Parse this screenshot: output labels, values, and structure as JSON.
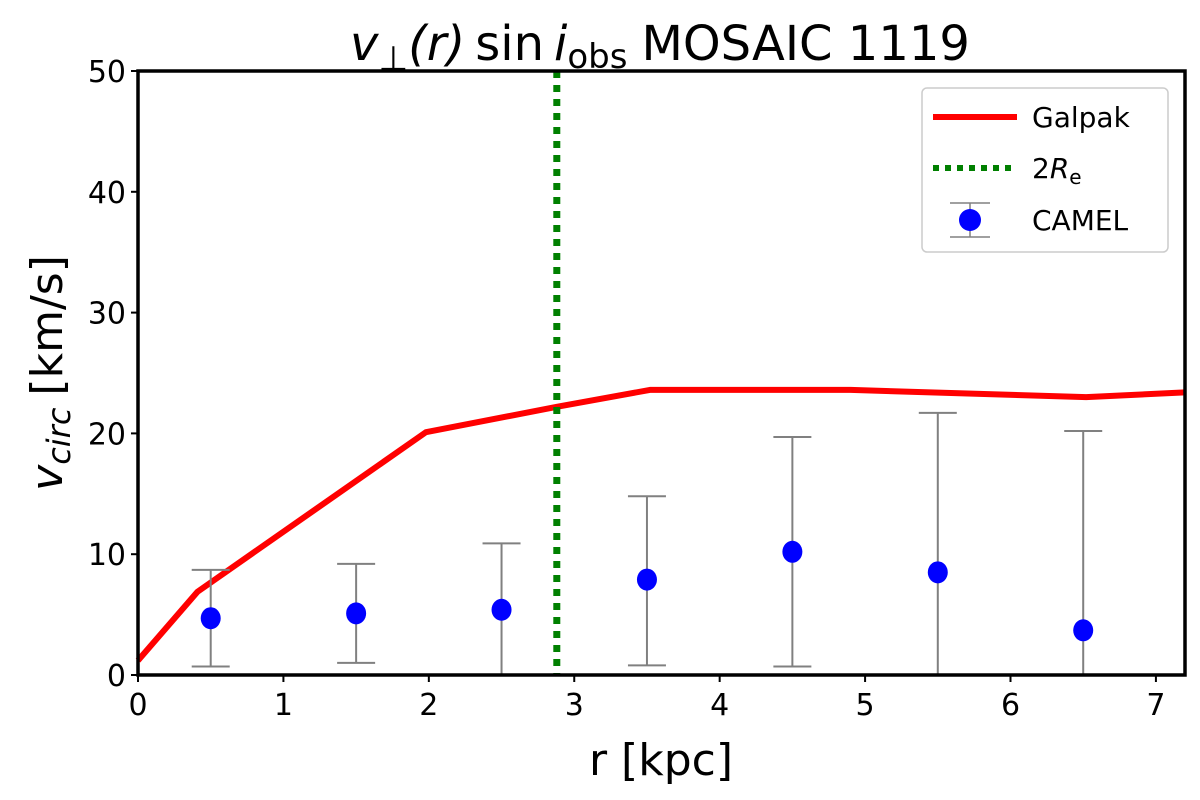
{
  "chart_data": {
    "type": "line",
    "title": {
      "v": "v",
      "perp": "⊥",
      "r": "(r)",
      "sin": "sin",
      "i": "i",
      "obs": "obs",
      "name": "MOSAIC 1119"
    },
    "xlabel": "r [kpc]",
    "ylabel": {
      "v": "v",
      "sub": "circ",
      "unit": "[km/s]"
    },
    "xlim": [
      0,
      7.2
    ],
    "ylim": [
      0,
      50
    ],
    "xticks": [
      "0",
      "1",
      "2",
      "3",
      "4",
      "5",
      "6",
      "7"
    ],
    "yticks": [
      "0",
      "10",
      "20",
      "30",
      "40",
      "50"
    ],
    "grid": false,
    "legend_position": "top-right",
    "legend": {
      "galpak": "Galpak",
      "re_prefix": "2",
      "re_R": "R",
      "re_sub": "e",
      "camel": "CAMEL"
    },
    "colors": {
      "galpak": "#ff0000",
      "re": "#008000",
      "camel": "#0000ff",
      "errorbar": "#808080"
    },
    "series": [
      {
        "name": "Galpak",
        "kind": "line",
        "x": [
          0,
          0.41,
          1.98,
          2.88,
          3.52,
          4.9,
          6.52,
          7.2
        ],
        "y": [
          1.2,
          6.9,
          20.1,
          22.2,
          23.6,
          23.6,
          23.0,
          23.4
        ]
      },
      {
        "name": "2Re",
        "kind": "vline",
        "x": 2.88
      },
      {
        "name": "CAMEL",
        "kind": "errorbar",
        "x": [
          0.5,
          1.5,
          2.5,
          3.5,
          4.5,
          5.5,
          6.5
        ],
        "y": [
          4.7,
          5.1,
          5.4,
          7.9,
          10.2,
          8.5,
          3.7
        ],
        "ylow": [
          0.7,
          1.0,
          0,
          0.8,
          0.7,
          0,
          0
        ],
        "yhigh": [
          8.7,
          9.2,
          10.9,
          14.8,
          19.7,
          21.7,
          20.2
        ]
      }
    ]
  }
}
